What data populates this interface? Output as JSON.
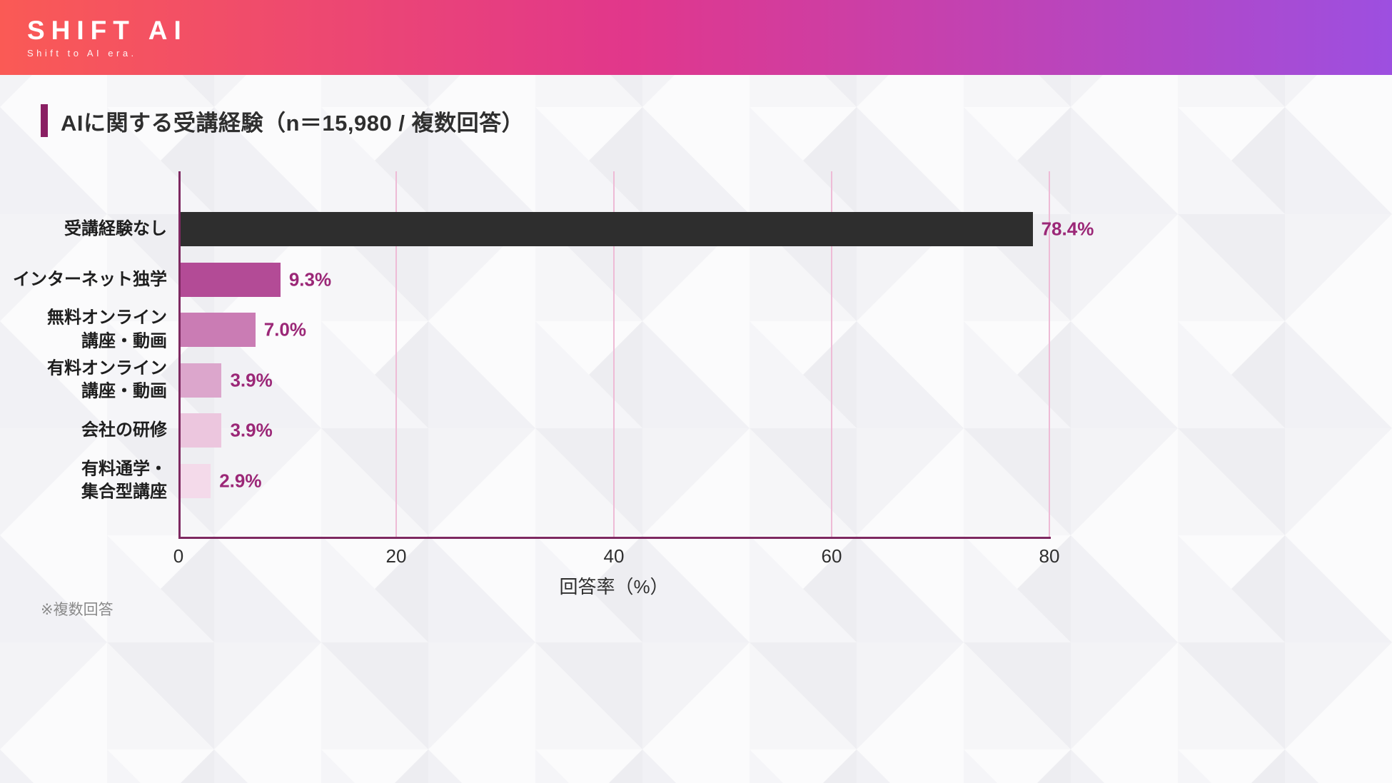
{
  "header": {
    "logo_text": "SHIFT AI",
    "logo_tagline": "Shift to AI era.",
    "gradient": [
      "#fa5a55",
      "#e1378b",
      "#9d4fe0"
    ]
  },
  "title": "AIに関する受講経験（n＝15,980 / 複数回答）",
  "note": "※複数回答",
  "chart_data": {
    "type": "bar",
    "orientation": "horizontal",
    "title": "AIに関する受講経験（n＝15,980 / 複数回答）",
    "categories": [
      "受講経験なし",
      "インターネット独学",
      "無料オンライン\n講座・動画",
      "有料オンライン\n講座・動画",
      "会社の研修",
      "有料通学・\n集合型講座"
    ],
    "values": [
      78.4,
      9.3,
      7.0,
      3.9,
      3.9,
      2.9
    ],
    "value_labels": [
      "78.4%",
      "9.3%",
      "7.0%",
      "3.9%",
      "3.9%",
      "2.9%"
    ],
    "bar_colors": [
      "#2e2e2e",
      "#b34b96",
      "#ca7cb4",
      "#dca6cc",
      "#ecc6de",
      "#f4daea"
    ],
    "xlabel": "回答率（%）",
    "ylabel": "",
    "x_ticks": [
      0,
      20,
      40,
      60,
      80
    ],
    "xlim": [
      0,
      80
    ],
    "grid": true,
    "legend": false,
    "axis_color": "#7e2961",
    "grid_color": "#eebbd6",
    "value_label_color": "#9b2777"
  }
}
